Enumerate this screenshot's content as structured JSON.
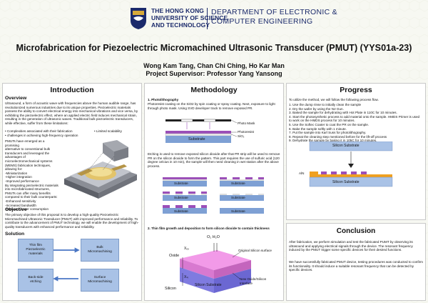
{
  "header": {
    "university": [
      "THE HONG KONG",
      "UNIVERSITY OF SCIENCE",
      "AND TECHNOLOGY"
    ],
    "department": [
      "DEPARTMENT OF ELECTRONIC &",
      "COMPUTER ENGINEERING"
    ]
  },
  "title": "Microfabrication for Piezoelectric Micromachined Ultrasonic Transducer (PMUT) (YYS01a-23)",
  "authors": "Wong Kam Tang, Chan Chi Ching, Ho Kar Man",
  "supervisor": "Project Supervisor: Professor Yang Yansong",
  "intro": {
    "heading": "Introduction",
    "overview_heading": "Overview",
    "overview_text": "Ultrasound, a form of acoustic wave with frequencies above the human audible range, has revolutionized numerous industries due to its unique properties. Piezoelectric materials possess the ability to convert electrical energy into mechanical vibrations and vice versa, by exhibiting the piezoelectric effect, where an applied electric field induces mechanical strain, resulting in the generation of ultrasonic waves. Traditional bulk piezoelectric transducers, while effective, suffer from these limitations:",
    "limits": [
      "• Complexities associated with their fabrication",
      "• Limited scalability",
      "• challenges in achieving high-frequency operation"
    ],
    "pmut_lines": [
      "PMUTs have emerged as a promising",
      "alternative to conventional bulk",
      "transducers and leveraged the",
      "advantages of",
      "microelectromechanical systems",
      "(MEMS) fabrication techniques,",
      "allowing for:",
      "-Miniaturization",
      "-Higher integration",
      "-Improved performance",
      "By integrating piezoelectric materials",
      "into microfabricated structures,",
      "PMUTs can offer many benefits",
      "compared to their bulk counterparts:",
      "-Enhanced sensitivity",
      "-Increased bandwidth",
      "-Reduced power consumption"
    ],
    "objective_heading": "Objective",
    "objective_text": "The primary objective of this proposal is to develop a high-quality Piezoelectric Micromachined Ultrasonic Transducer (PMUT) with improved performance and reliability. To contribute to the advancement of PMUT technology, we will enable the development of high-quality transducers with enhanced performance and reliability.",
    "solution_heading": "Solution",
    "solution_boxes": [
      "Thin film\nPiezoelectric\nmaterials",
      "Bulk\nMicromachining",
      "Back-side\netching",
      "Surface\nMicromachining"
    ]
  },
  "method": {
    "heading": "Methodology",
    "step1_title": "1. Photolithography",
    "step1_text": "Photoresist coating on the SiO2 by spin coating or spray coating. Next, exposure to light through photo mask. Using SVD developer track to remove exposed PR.",
    "labels": {
      "mask": "Photo Mask",
      "pr": "Photoresist",
      "sio2": "SiO₂",
      "substrate": "Substrate"
    },
    "etch_text": "Etching is used to remove exposed silicon dioxide after that PR strip will be used to remove PR on the silicon dioxide to form the pattern. This part requires the use of sulfuric acid (120 degree celcius in 10 min), the sample will then need cleaning in wet station after the above process.",
    "substrate_label": "Substrate",
    "step2_title": "2. Thin film growth and deposition to form silicon dioxide to contain thickness",
    "oxid": {
      "gas": "O₂ H₂O",
      "oxide": "Oxide",
      "silicon": "Silicon",
      "surface": "Original Silicon surface",
      "interface": "New Oxide/Silicon\nInterface",
      "substrate": "Silicon Substrate",
      "xox": "Xₒₓ",
      "xsi": "Xₛᵢ"
    }
  },
  "progress": {
    "heading": "Progress",
    "intro": "To utilize the method, we will follow the following process flow.",
    "steps": [
      "1. Use the dump rinse to initially clean the sample",
      "2. Dry the wafer by using the N2 Gun.",
      "3. Baked the sample for dehydrating with Hot Plate in 110C for 10 minutes.",
      "4. Start the photosynthetic process to add material onto the sample. HMDS Primer is used to work on the HMDS process for 10 minutes.",
      "5. Use the Softec Coater to coat the PR on the sample.",
      "6. Bake the sample softly with 1 minute.",
      "7. Put the sample into Karl Suss for photolithography.",
      "8. Repeat the cleaning step mentioned before for the lift-off process",
      "9. Dehydrate the sample by baking it in 105C for 10 minutes."
    ],
    "diagram_labels": {
      "substrate1": "Silicon Substrate",
      "aln": "AlN",
      "substrate2": "Silicon Substrate"
    }
  },
  "conclusion": {
    "heading": "Conclusion",
    "p1": "After fabrication, we perform simulation and test the fabricated PUMT by observing its ultrasound and applying electrical signals through the device. The resonant frequency induced by the PMUT trigger some specific devices for their desired functions.",
    "p2": "We have successfully fabricated PMUT device, testing procedures was conducted to confirm its functionality. It should induce a suitable resonant frequency that can be detected by specific devices."
  },
  "colors": {
    "navy": "#1b2a6b",
    "box_blue": "#a9c2e6",
    "substrate": "#7ea0d4",
    "pr_purple": "#9b4fb8",
    "aln_orange": "#f0a020"
  }
}
